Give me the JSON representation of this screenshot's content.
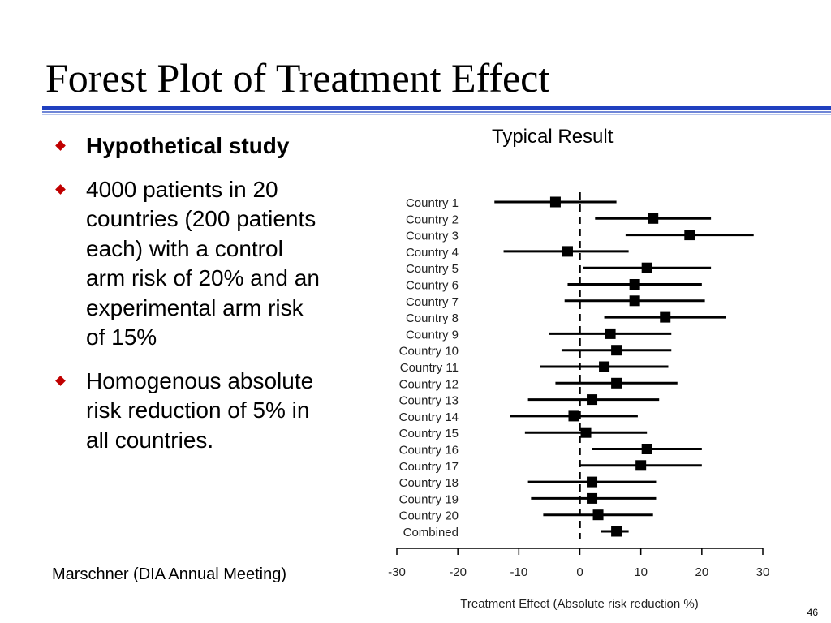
{
  "slide": {
    "title": "Forest Plot of Treatment Effect",
    "bullets": [
      {
        "text": "Hypothetical study",
        "bold": true
      },
      {
        "text": "4000 patients in 20 countries (200 patients each) with a control arm risk of 20% and an experimental arm risk of 15%",
        "bold": false
      },
      {
        "text": "Homogenous absolute risk reduction of 5% in all countries.",
        "bold": false
      }
    ],
    "citation": "Marschner (DIA Annual Meeting)",
    "page_number": "46",
    "bullet_color": "#c00000",
    "rule_color": "#1f3fbf"
  },
  "chart_data": {
    "type": "forest",
    "title": "Typical Result",
    "xlabel": "Treatment Effect (Absolute risk reduction %)",
    "xlim": [
      -30,
      30
    ],
    "xticks": [
      -30,
      -20,
      -10,
      0,
      10,
      20,
      30
    ],
    "xtick_labels": [
      "-30",
      "-20",
      "-10",
      "0",
      "10",
      "20",
      "30"
    ],
    "reference_line": 0,
    "rows": [
      {
        "label": "Country 1",
        "estimate": -4,
        "lower": -14,
        "upper": 6
      },
      {
        "label": "Country 2",
        "estimate": 12,
        "lower": 2.5,
        "upper": 21.5
      },
      {
        "label": "Country 3",
        "estimate": 18,
        "lower": 7.5,
        "upper": 28.5
      },
      {
        "label": "Country 4",
        "estimate": -2,
        "lower": -12.5,
        "upper": 8
      },
      {
        "label": "Country 5",
        "estimate": 11,
        "lower": 0.5,
        "upper": 21.5
      },
      {
        "label": "Country 6",
        "estimate": 9,
        "lower": -2,
        "upper": 20
      },
      {
        "label": "Country 7",
        "estimate": 9,
        "lower": -2.5,
        "upper": 20.5
      },
      {
        "label": "Country 8",
        "estimate": 14,
        "lower": 4,
        "upper": 24
      },
      {
        "label": "Country 9",
        "estimate": 5,
        "lower": -5,
        "upper": 15
      },
      {
        "label": "Country 10",
        "estimate": 6,
        "lower": -3,
        "upper": 15
      },
      {
        "label": "Country 11",
        "estimate": 4,
        "lower": -6.5,
        "upper": 14.5
      },
      {
        "label": "Country 12",
        "estimate": 6,
        "lower": -4,
        "upper": 16
      },
      {
        "label": "Country 13",
        "estimate": 2,
        "lower": -8.5,
        "upper": 13
      },
      {
        "label": "Country 14",
        "estimate": -1,
        "lower": -11.5,
        "upper": 9.5
      },
      {
        "label": "Country 15",
        "estimate": 1,
        "lower": -9,
        "upper": 11
      },
      {
        "label": "Country 16",
        "estimate": 11,
        "lower": 2,
        "upper": 20
      },
      {
        "label": "Country 17",
        "estimate": 10,
        "lower": 0,
        "upper": 20
      },
      {
        "label": "Country 18",
        "estimate": 2,
        "lower": -8.5,
        "upper": 12.5
      },
      {
        "label": "Country 19",
        "estimate": 2,
        "lower": -8,
        "upper": 12.5
      },
      {
        "label": "Country 20",
        "estimate": 3,
        "lower": -6,
        "upper": 12
      },
      {
        "label": "Combined",
        "estimate": 6,
        "lower": 3.5,
        "upper": 8
      }
    ]
  }
}
